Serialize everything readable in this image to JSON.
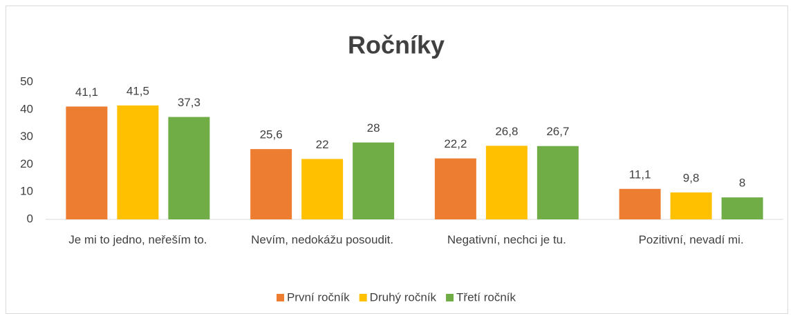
{
  "chart_data": {
    "type": "bar",
    "title": "Ročníky",
    "categories": [
      "Je mi to jedno, neřeším to.",
      "Nevím, nedokážu posoudit.",
      "Negativní, nechci je tu.",
      "Pozitivní, nevadí mi."
    ],
    "series": [
      {
        "name": "První ročník",
        "color": "#ed7d31",
        "values": [
          41.1,
          25.6,
          22.2,
          11.1
        ],
        "value_labels": [
          "41,1",
          "25,6",
          "22,2",
          "11,1"
        ]
      },
      {
        "name": "Druhý ročník",
        "color": "#ffc000",
        "values": [
          41.5,
          22,
          26.8,
          9.8
        ],
        "value_labels": [
          "41,5",
          "22",
          "26,8",
          "9,8"
        ]
      },
      {
        "name": "Třetí ročník",
        "color": "#70ad47",
        "values": [
          37.3,
          28,
          26.7,
          8
        ],
        "value_labels": [
          "37,3",
          "28",
          "26,7",
          "8"
        ]
      }
    ],
    "ylim": [
      0,
      50
    ],
    "yticks": [
      0,
      10,
      20,
      30,
      40,
      50
    ],
    "grid": false,
    "legend": "bottom"
  }
}
